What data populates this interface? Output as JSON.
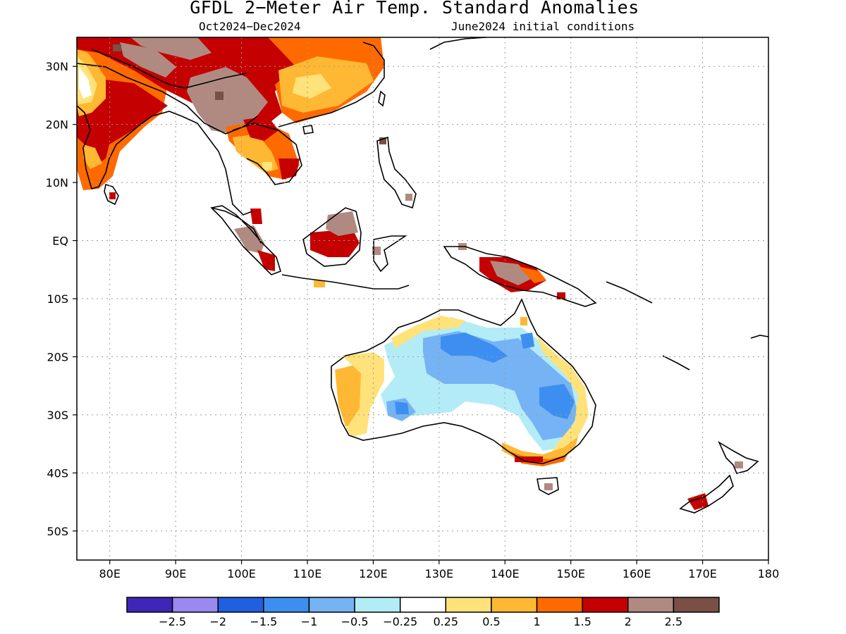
{
  "title": "GFDL 2−Meter Air Temp. Standard Anomalies",
  "subtitle_left": "Oct2024−Dec2024",
  "subtitle_right": "June2024 initial conditions",
  "map": {
    "lon_range": [
      75,
      180
    ],
    "lat_range": [
      -55,
      35
    ],
    "lat_labels": [
      {
        "lat": 30,
        "text": "30N"
      },
      {
        "lat": 20,
        "text": "20N"
      },
      {
        "lat": 10,
        "text": "10N"
      },
      {
        "lat": 0,
        "text": "EQ"
      },
      {
        "lat": -10,
        "text": "10S"
      },
      {
        "lat": -20,
        "text": "20S"
      },
      {
        "lat": -30,
        "text": "30S"
      },
      {
        "lat": -40,
        "text": "40S"
      },
      {
        "lat": -50,
        "text": "50S"
      }
    ],
    "lon_labels": [
      {
        "lon": 80,
        "text": "80E"
      },
      {
        "lon": 90,
        "text": "90E"
      },
      {
        "lon": 100,
        "text": "100E"
      },
      {
        "lon": 110,
        "text": "110E"
      },
      {
        "lon": 120,
        "text": "120E"
      },
      {
        "lon": 130,
        "text": "130E"
      },
      {
        "lon": 140,
        "text": "140E"
      },
      {
        "lon": 150,
        "text": "150E"
      },
      {
        "lon": 160,
        "text": "160E"
      },
      {
        "lon": 170,
        "text": "170E"
      },
      {
        "lon": 180,
        "text": "180"
      }
    ],
    "grid": "dotted"
  },
  "colorbar": {
    "colors": [
      "#3f26b8",
      "#9b88f0",
      "#1f5fe0",
      "#3c8ff0",
      "#76b3f5",
      "#b3ecf7",
      "#ffffff",
      "#ffe27a",
      "#ffb833",
      "#ff6a00",
      "#c40000",
      "#b08a80",
      "#7a4f46"
    ],
    "labels": [
      "−2.5",
      "−2",
      "−1.5",
      "−1",
      "−0.5",
      "−0.25",
      "0.25",
      "0.5",
      "1",
      "1.5",
      "2",
      "2.5"
    ]
  },
  "legend_colors": {
    "brown_dark": "#7a4f46",
    "brown_light": "#b08a80",
    "red": "#c40000",
    "orange": "#ff6a00",
    "gold": "#ffb833",
    "yellow": "#ffe27a",
    "light_cyan": "#b3ecf7",
    "light_blue": "#76b3f5",
    "mid_blue": "#3c8ff0"
  }
}
